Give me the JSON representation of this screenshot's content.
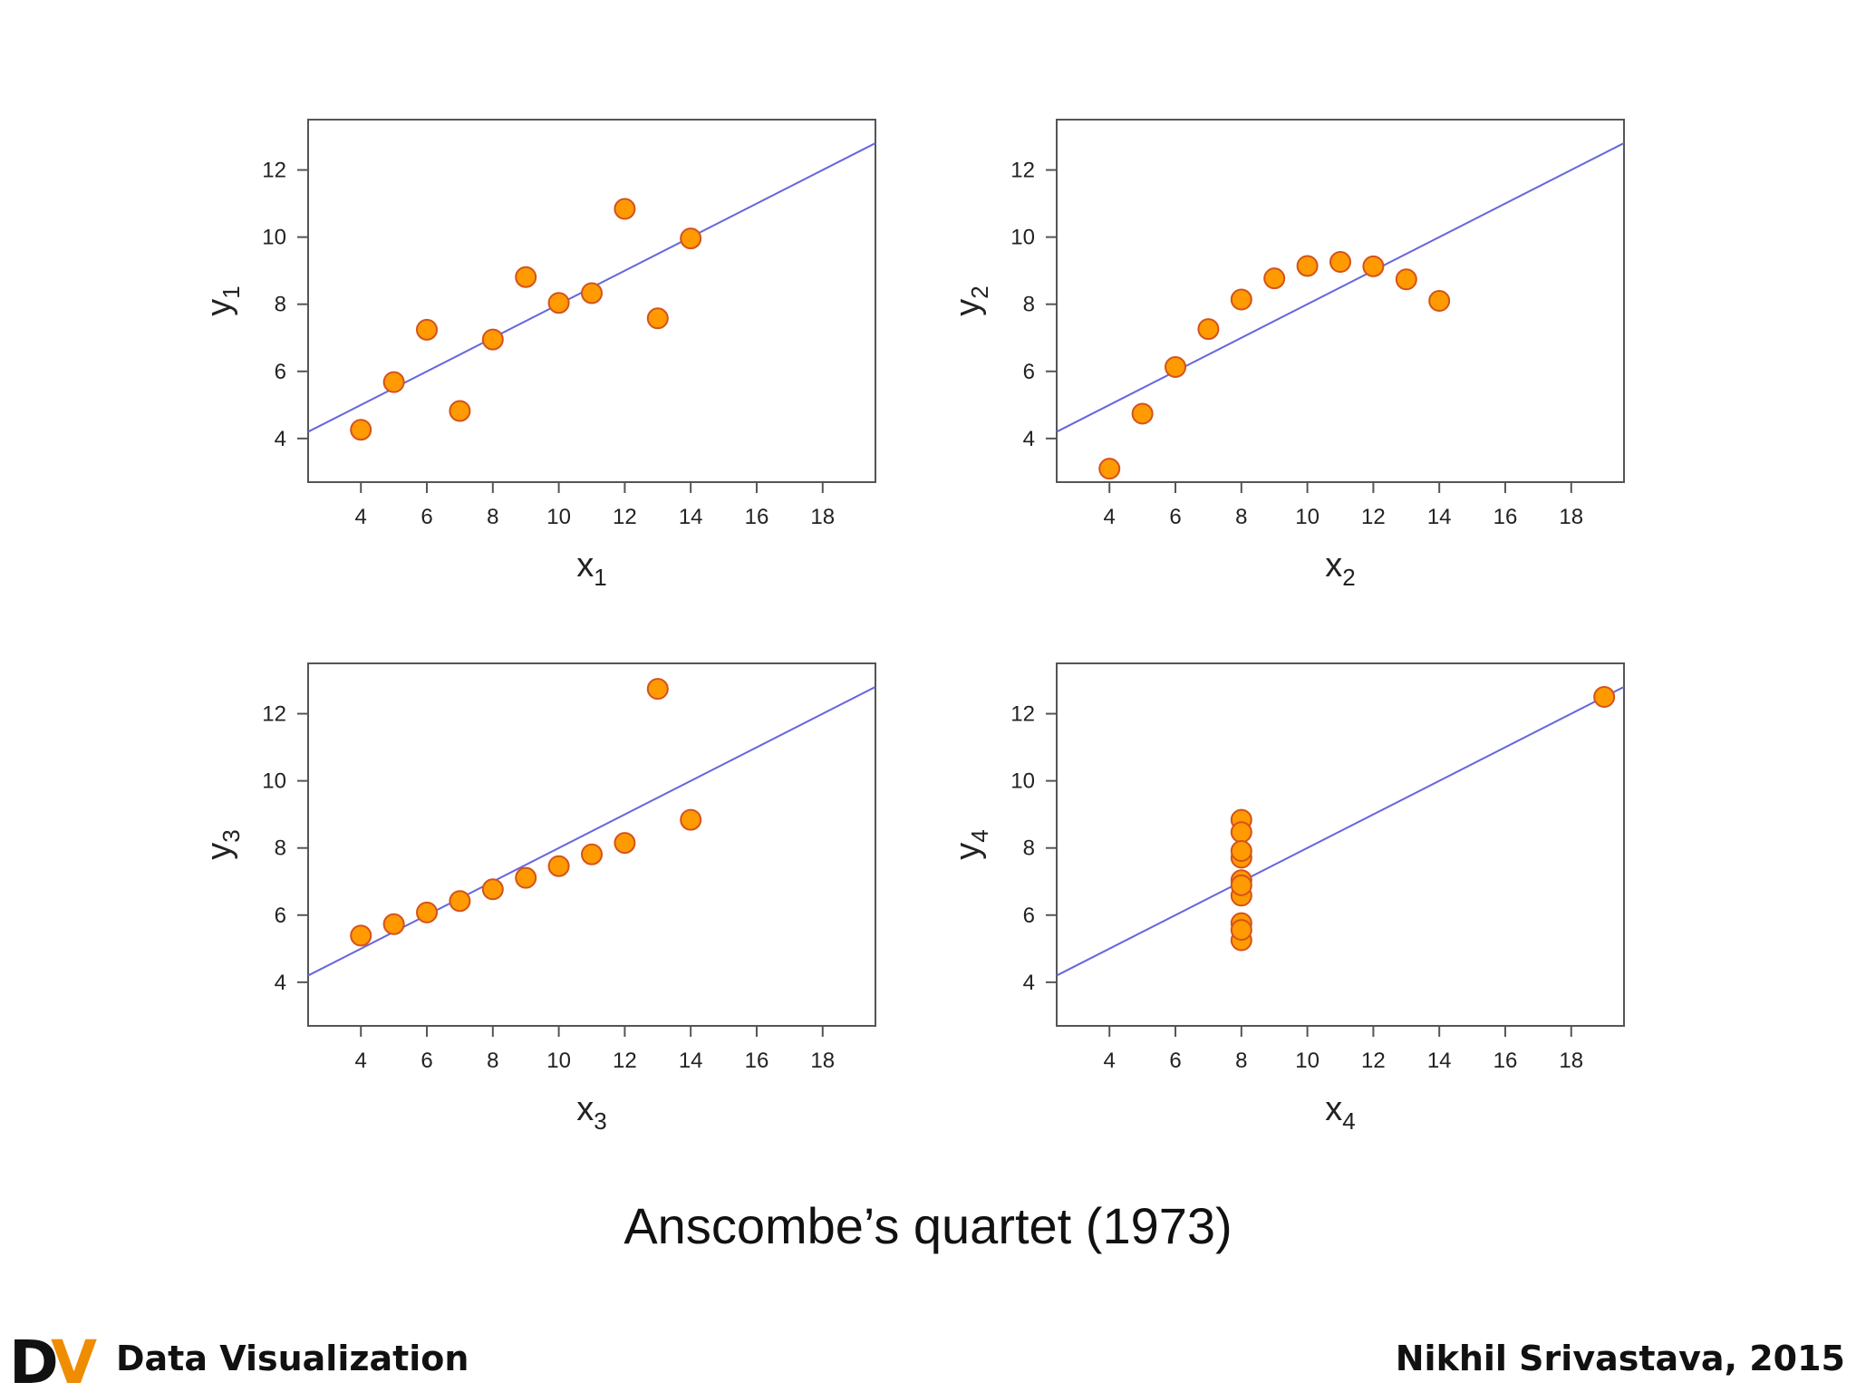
{
  "chart_data": [
    {
      "type": "scatter",
      "xlabel": "x",
      "xlabel_sub": "1",
      "ylabel": "y",
      "ylabel_sub": "1",
      "xlim": [
        2.4,
        19.6
      ],
      "ylim": [
        2.7,
        13.5
      ],
      "xticks": [
        4,
        6,
        8,
        10,
        12,
        14,
        16,
        18
      ],
      "yticks": [
        4,
        6,
        8,
        10,
        12
      ],
      "x": [
        10,
        8,
        13,
        9,
        11,
        14,
        6,
        4,
        12,
        7,
        5
      ],
      "y": [
        8.04,
        6.95,
        7.58,
        8.81,
        8.33,
        9.96,
        7.24,
        4.26,
        10.84,
        4.82,
        5.68
      ],
      "fit": {
        "intercept": 3.0,
        "slope": 0.5
      }
    },
    {
      "type": "scatter",
      "xlabel": "x",
      "xlabel_sub": "2",
      "ylabel": "y",
      "ylabel_sub": "2",
      "xlim": [
        2.4,
        19.6
      ],
      "ylim": [
        2.7,
        13.5
      ],
      "xticks": [
        4,
        6,
        8,
        10,
        12,
        14,
        16,
        18
      ],
      "yticks": [
        4,
        6,
        8,
        10,
        12
      ],
      "x": [
        10,
        8,
        13,
        9,
        11,
        14,
        6,
        4,
        12,
        7,
        5
      ],
      "y": [
        9.14,
        8.14,
        8.74,
        8.77,
        9.26,
        8.1,
        6.13,
        3.1,
        9.13,
        7.26,
        4.74
      ],
      "fit": {
        "intercept": 3.0,
        "slope": 0.5
      }
    },
    {
      "type": "scatter",
      "xlabel": "x",
      "xlabel_sub": "3",
      "ylabel": "y",
      "ylabel_sub": "3",
      "xlim": [
        2.4,
        19.6
      ],
      "ylim": [
        2.7,
        13.5
      ],
      "xticks": [
        4,
        6,
        8,
        10,
        12,
        14,
        16,
        18
      ],
      "yticks": [
        4,
        6,
        8,
        10,
        12
      ],
      "x": [
        10,
        8,
        13,
        9,
        11,
        14,
        6,
        4,
        12,
        7,
        5
      ],
      "y": [
        7.46,
        6.77,
        12.74,
        7.11,
        7.81,
        8.84,
        6.08,
        5.39,
        8.15,
        6.42,
        5.73
      ],
      "fit": {
        "intercept": 3.0,
        "slope": 0.5
      }
    },
    {
      "type": "scatter",
      "xlabel": "x",
      "xlabel_sub": "4",
      "ylabel": "y",
      "ylabel_sub": "4",
      "xlim": [
        2.4,
        19.6
      ],
      "ylim": [
        2.7,
        13.5
      ],
      "xticks": [
        4,
        6,
        8,
        10,
        12,
        14,
        16,
        18
      ],
      "yticks": [
        4,
        6,
        8,
        10,
        12
      ],
      "x": [
        8,
        8,
        8,
        8,
        8,
        8,
        8,
        19,
        8,
        8,
        8
      ],
      "y": [
        6.58,
        5.76,
        7.71,
        8.84,
        8.47,
        7.04,
        5.25,
        12.5,
        5.56,
        7.91,
        6.89
      ],
      "fit": {
        "intercept": 3.0,
        "slope": 0.5
      }
    }
  ],
  "caption": "Anscombe’s quartet (1973)",
  "footer": {
    "logo_text": "DV",
    "title": "Data Visualization",
    "author": "Nikhil Srivastava, 2015"
  },
  "colors": {
    "point_fill": "#ff9a00",
    "point_stroke": "#d4521c",
    "fit_line": "#6666dd",
    "logo_d": "#111111",
    "logo_v": "#f08c00"
  }
}
